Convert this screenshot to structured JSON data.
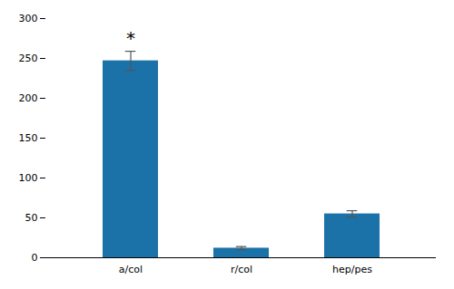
{
  "chart_data": {
    "type": "bar",
    "categories": [
      "a/col",
      "r/col",
      "hep/pes"
    ],
    "values": [
      247,
      12,
      55
    ],
    "errors": [
      12,
      2,
      4
    ],
    "color": "#1a72a8",
    "ylim": [
      0,
      300
    ],
    "yticks": [
      0,
      50,
      100,
      150,
      200,
      250,
      300
    ],
    "annotations": [
      {
        "text": "*",
        "category": "a/col"
      }
    ],
    "grid": false
  }
}
